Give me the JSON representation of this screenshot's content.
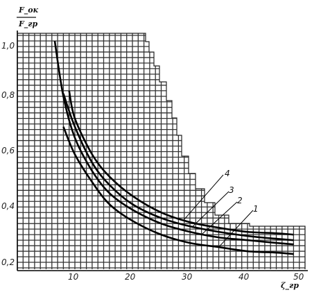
{
  "chart_data": {
    "type": "line",
    "ylabel_numerator": "F_ок",
    "ylabel_denominator": "F_гр",
    "xlabel": "ζ_гр",
    "xlim": [
      0,
      50
    ],
    "ylim": [
      0.2,
      1.05
    ],
    "x_ticks": [
      "10",
      "20",
      "30",
      "40",
      "50"
    ],
    "y_ticks": [
      "0,2",
      "0,4",
      "0,6",
      "0,8",
      "1,0"
    ],
    "grid": true,
    "series": [
      {
        "name": "1",
        "x": [
          8,
          10,
          13,
          16,
          20,
          25,
          30,
          35,
          40,
          45,
          48
        ],
        "y": [
          0.69,
          0.59,
          0.49,
          0.41,
          0.35,
          0.3,
          0.27,
          0.255,
          0.24,
          0.235,
          0.23
        ]
      },
      {
        "name": "2",
        "x": [
          6.5,
          8,
          10,
          13,
          16,
          20,
          25,
          30,
          35,
          40,
          45,
          48
        ],
        "y": [
          1.0,
          0.8,
          0.65,
          0.53,
          0.45,
          0.39,
          0.34,
          0.31,
          0.29,
          0.28,
          0.27,
          0.265
        ]
      },
      {
        "name": "3",
        "x": [
          8,
          10,
          13,
          16,
          20,
          25,
          30,
          35,
          40,
          45,
          48
        ],
        "y": [
          0.81,
          0.69,
          0.56,
          0.48,
          0.41,
          0.36,
          0.33,
          0.31,
          0.295,
          0.285,
          0.28
        ]
      },
      {
        "name": "4",
        "x": [
          9,
          10,
          13,
          16,
          20,
          25,
          30,
          35,
          40,
          45,
          48
        ],
        "y": [
          0.82,
          0.72,
          0.59,
          0.51,
          0.44,
          0.38,
          0.345,
          0.325,
          0.31,
          0.305,
          0.3
        ]
      }
    ]
  }
}
